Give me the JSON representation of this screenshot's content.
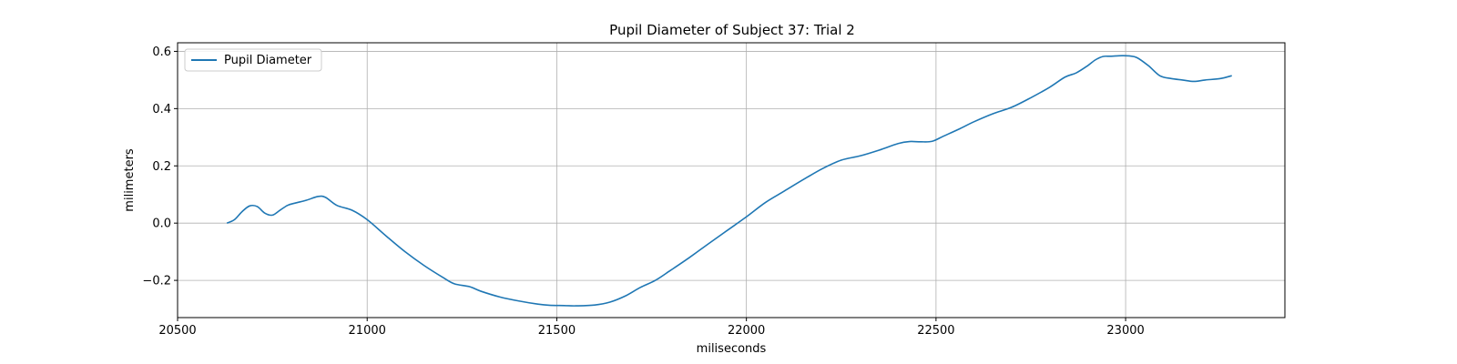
{
  "chart_data": {
    "type": "line",
    "title": "Pupil Diameter of Subject 37: Trial 2",
    "xlabel": "miliseconds",
    "ylabel": "milimeters",
    "xlim": [
      20500,
      23420
    ],
    "ylim": [
      -0.33,
      0.63
    ],
    "xticks": [
      20500,
      21000,
      21500,
      22000,
      22500,
      23000
    ],
    "yticks": [
      -0.2,
      0.0,
      0.2,
      0.4,
      0.6
    ],
    "xtick_labels": [
      "20500",
      "21000",
      "21500",
      "22000",
      "22500",
      "23000"
    ],
    "ytick_labels": [
      "−0.2",
      "0.0",
      "0.2",
      "0.4",
      "0.6"
    ],
    "grid": true,
    "legend": "top-left",
    "series": [
      {
        "name": "Pupil Diameter",
        "color": "#1f77b4",
        "x": [
          20630,
          20650,
          20670,
          20690,
          20710,
          20730,
          20750,
          20770,
          20790,
          20810,
          20840,
          20870,
          20890,
          20920,
          20960,
          21000,
          21050,
          21100,
          21150,
          21200,
          21230,
          21270,
          21300,
          21350,
          21400,
          21450,
          21480,
          21520,
          21550,
          21600,
          21640,
          21680,
          21720,
          21760,
          21800,
          21850,
          21900,
          21950,
          22000,
          22050,
          22100,
          22150,
          22200,
          22250,
          22300,
          22350,
          22400,
          22430,
          22460,
          22490,
          22520,
          22560,
          22600,
          22650,
          22700,
          22750,
          22800,
          22840,
          22870,
          22900,
          22920,
          22940,
          22960,
          22990,
          23010,
          23030,
          23060,
          23090,
          23120,
          23150,
          23180,
          23210,
          23250,
          23280
        ],
        "y": [
          0.0,
          0.012,
          0.04,
          0.06,
          0.058,
          0.035,
          0.028,
          0.045,
          0.062,
          0.07,
          0.08,
          0.093,
          0.09,
          0.062,
          0.045,
          0.012,
          -0.045,
          -0.1,
          -0.148,
          -0.19,
          -0.212,
          -0.222,
          -0.238,
          -0.258,
          -0.272,
          -0.283,
          -0.287,
          -0.288,
          -0.289,
          -0.286,
          -0.276,
          -0.255,
          -0.225,
          -0.2,
          -0.165,
          -0.12,
          -0.072,
          -0.025,
          0.022,
          0.072,
          0.112,
          0.152,
          0.19,
          0.22,
          0.235,
          0.255,
          0.278,
          0.285,
          0.284,
          0.286,
          0.304,
          0.328,
          0.354,
          0.382,
          0.405,
          0.438,
          0.475,
          0.51,
          0.525,
          0.55,
          0.57,
          0.582,
          0.583,
          0.585,
          0.584,
          0.578,
          0.55,
          0.515,
          0.505,
          0.5,
          0.495,
          0.5,
          0.505,
          0.515
        ]
      }
    ]
  }
}
